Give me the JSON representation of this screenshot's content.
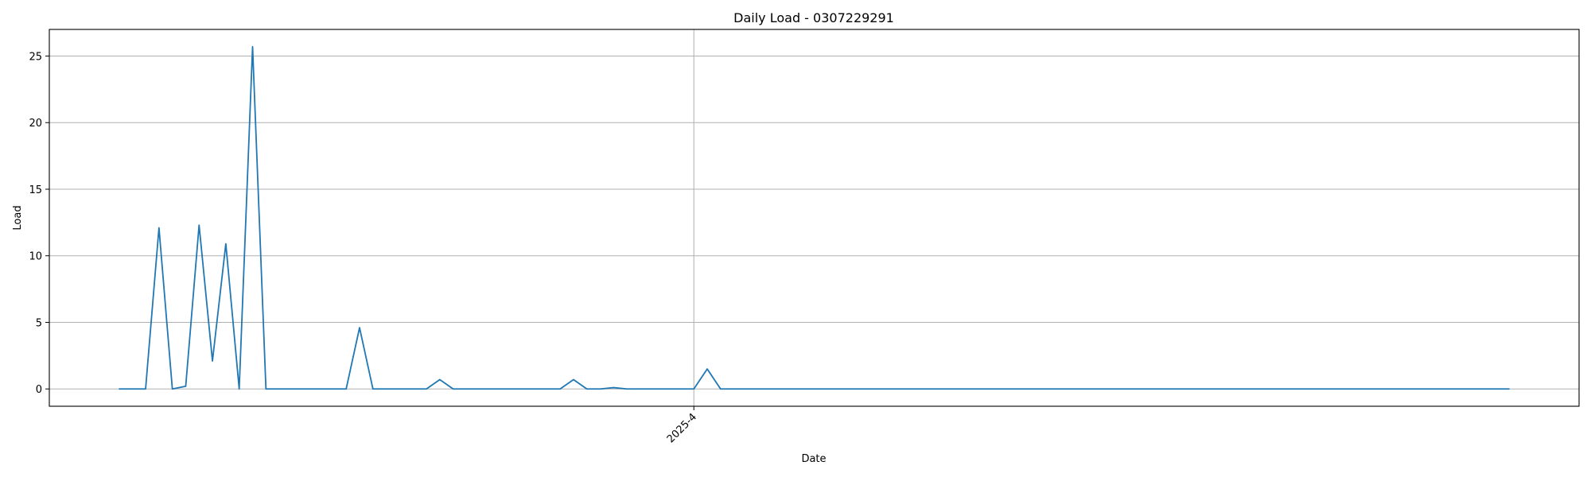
{
  "chart_data": {
    "type": "line",
    "title": "Daily Load - 0307229291",
    "xlabel": "Date",
    "ylabel": "Load",
    "x_tick_labels": [
      {
        "label": "2025-4",
        "x": 43
      }
    ],
    "y_ticks": [
      0,
      5,
      10,
      15,
      20,
      25
    ],
    "ylim": [
      -1.3,
      27.0
    ],
    "xlim": [
      -5.2,
      109.2
    ],
    "grid": true,
    "series_color": "#1f77b4",
    "series": [
      {
        "values": [
          0,
          0,
          0,
          12.1,
          0,
          0.2,
          12.3,
          2.1,
          10.9,
          0,
          25.7,
          0,
          0,
          0,
          0,
          0,
          0,
          0,
          4.6,
          0,
          0,
          0,
          0,
          0,
          0.7,
          0,
          0,
          0,
          0,
          0,
          0,
          0,
          0,
          0,
          0.7,
          0,
          0,
          0.1,
          0,
          0,
          0,
          0,
          0,
          0,
          1.5,
          0,
          0,
          0,
          0,
          0,
          0,
          0,
          0,
          0,
          0,
          0,
          0,
          0,
          0,
          0,
          0,
          0,
          0,
          0,
          0,
          0,
          0,
          0,
          0,
          0,
          0,
          0,
          0,
          0,
          0,
          0,
          0,
          0,
          0,
          0,
          0,
          0,
          0,
          0,
          0,
          0,
          0,
          0,
          0,
          0,
          0,
          0,
          0,
          0,
          0,
          0,
          0,
          0,
          0,
          0,
          0,
          0,
          0,
          0,
          0
        ]
      }
    ]
  }
}
